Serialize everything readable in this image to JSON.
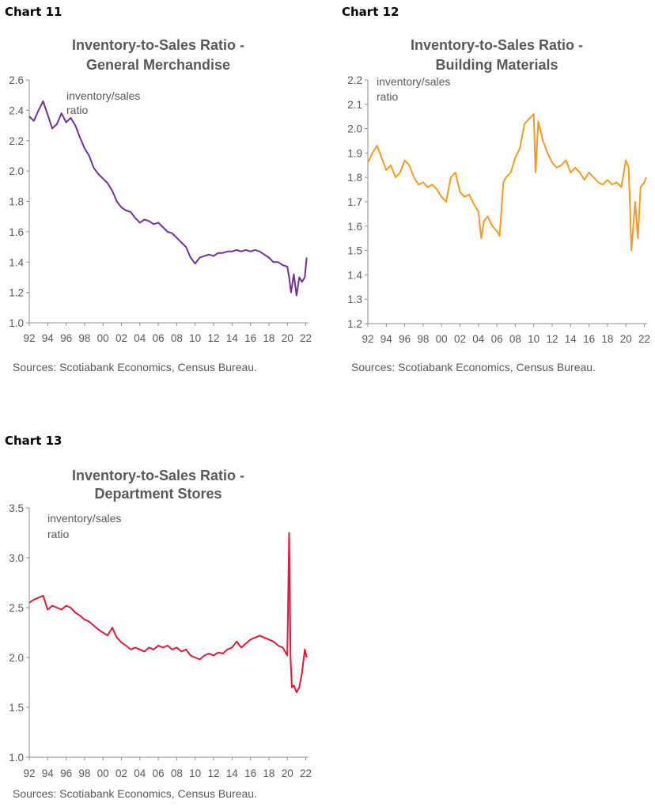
{
  "chart_data": [
    {
      "label": "Chart 11",
      "type": "line",
      "title": [
        "Inventory-to-Sales Ratio -",
        "General Merchandise"
      ],
      "annotation": [
        "inventory/sales",
        "ratio"
      ],
      "source": "Sources: Scotiabank Economics, Census Bureau.",
      "color": "#7030A0",
      "ylim": [
        1.0,
        2.6
      ],
      "yticks": [
        "2.6",
        "2.4",
        "2.2",
        "2.0",
        "1.8",
        "1.6",
        "1.4",
        "1.2",
        "1.0"
      ],
      "xticks": [
        "92",
        "94",
        "96",
        "98",
        "00",
        "02",
        "04",
        "06",
        "08",
        "10",
        "12",
        "14",
        "16",
        "18",
        "20",
        "22"
      ],
      "x": [
        1992.0,
        1992.5,
        1993.0,
        1993.5,
        1994.0,
        1994.5,
        1995.0,
        1995.5,
        1996.0,
        1996.5,
        1997.0,
        1997.5,
        1998.0,
        1998.5,
        1999.0,
        1999.5,
        2000.0,
        2000.5,
        2001.0,
        2001.5,
        2002.0,
        2002.5,
        2003.0,
        2003.5,
        2004.0,
        2004.5,
        2005.0,
        2005.5,
        2006.0,
        2006.5,
        2007.0,
        2007.5,
        2008.0,
        2008.5,
        2009.0,
        2009.5,
        2010.0,
        2010.5,
        2011.0,
        2011.5,
        2012.0,
        2012.5,
        2013.0,
        2013.5,
        2014.0,
        2014.5,
        2015.0,
        2015.5,
        2016.0,
        2016.5,
        2017.0,
        2017.5,
        2018.0,
        2018.5,
        2019.0,
        2019.5,
        2020.0,
        2020.2,
        2020.4,
        2020.7,
        2021.0,
        2021.3,
        2021.6,
        2021.9,
        2022.1
      ],
      "series": [
        {
          "values": [
            2.36,
            2.33,
            2.4,
            2.46,
            2.37,
            2.28,
            2.31,
            2.38,
            2.32,
            2.35,
            2.3,
            2.22,
            2.15,
            2.1,
            2.02,
            1.98,
            1.95,
            1.92,
            1.87,
            1.8,
            1.76,
            1.74,
            1.73,
            1.69,
            1.66,
            1.68,
            1.67,
            1.65,
            1.66,
            1.63,
            1.6,
            1.59,
            1.56,
            1.53,
            1.5,
            1.43,
            1.39,
            1.43,
            1.44,
            1.45,
            1.44,
            1.46,
            1.46,
            1.47,
            1.47,
            1.48,
            1.47,
            1.48,
            1.47,
            1.48,
            1.47,
            1.45,
            1.43,
            1.4,
            1.4,
            1.38,
            1.37,
            1.3,
            1.2,
            1.32,
            1.18,
            1.3,
            1.27,
            1.3,
            1.43
          ]
        }
      ]
    },
    {
      "label": "Chart 12",
      "type": "line",
      "title": [
        "Inventory-to-Sales Ratio -",
        "Building Materials"
      ],
      "annotation": [
        "inventory/sales",
        "ratio"
      ],
      "source": "Sources: Scotiabank Economics, Census Bureau.",
      "color": "#F79A1E",
      "ylim": [
        1.2,
        2.2
      ],
      "yticks": [
        "2.2",
        "2.1",
        "2.0",
        "1.9",
        "1.8",
        "1.7",
        "1.6",
        "1.5",
        "1.4",
        "1.3",
        "1.2"
      ],
      "xticks": [
        "92",
        "94",
        "96",
        "98",
        "00",
        "02",
        "04",
        "06",
        "08",
        "10",
        "12",
        "14",
        "16",
        "18",
        "20",
        "22"
      ],
      "x": [
        1992.0,
        1992.5,
        1993.0,
        1993.5,
        1994.0,
        1994.5,
        1995.0,
        1995.5,
        1996.0,
        1996.5,
        1997.0,
        1997.5,
        1998.0,
        1998.5,
        1999.0,
        1999.5,
        2000.0,
        2000.5,
        2001.0,
        2001.5,
        2002.0,
        2002.5,
        2003.0,
        2003.5,
        2004.0,
        2004.3,
        2004.6,
        2005.0,
        2005.5,
        2006.0,
        2006.3,
        2006.7,
        2007.0,
        2007.5,
        2008.0,
        2008.5,
        2009.0,
        2009.5,
        2010.0,
        2010.2,
        2010.5,
        2011.0,
        2011.5,
        2012.0,
        2012.5,
        2013.0,
        2013.5,
        2014.0,
        2014.5,
        2015.0,
        2015.5,
        2016.0,
        2016.5,
        2017.0,
        2017.5,
        2018.0,
        2018.5,
        2019.0,
        2019.5,
        2020.0,
        2020.3,
        2020.6,
        2021.0,
        2021.3,
        2021.6,
        2022.0,
        2022.2
      ],
      "series": [
        {
          "values": [
            1.86,
            1.9,
            1.93,
            1.88,
            1.83,
            1.85,
            1.8,
            1.82,
            1.87,
            1.85,
            1.8,
            1.77,
            1.78,
            1.76,
            1.77,
            1.75,
            1.72,
            1.7,
            1.8,
            1.82,
            1.74,
            1.72,
            1.73,
            1.69,
            1.66,
            1.55,
            1.62,
            1.64,
            1.6,
            1.58,
            1.56,
            1.78,
            1.8,
            1.82,
            1.88,
            1.92,
            2.02,
            2.04,
            2.06,
            1.82,
            2.03,
            1.95,
            1.9,
            1.86,
            1.84,
            1.85,
            1.87,
            1.82,
            1.84,
            1.82,
            1.79,
            1.82,
            1.8,
            1.78,
            1.77,
            1.79,
            1.77,
            1.78,
            1.76,
            1.87,
            1.84,
            1.5,
            1.7,
            1.55,
            1.76,
            1.78,
            1.8
          ]
        }
      ]
    },
    {
      "label": "Chart 13",
      "type": "line",
      "title": [
        "Inventory-to-Sales Ratio -",
        "Department Stores"
      ],
      "annotation": [
        "inventory/sales",
        "ratio"
      ],
      "source": "Sources: Scotiabank Economics, Census Bureau.",
      "color": "#E31837",
      "ylim": [
        1.0,
        3.5
      ],
      "yticks": [
        "3.5",
        "3.0",
        "2.5",
        "2.0",
        "1.5",
        "1.0"
      ],
      "xticks": [
        "92",
        "94",
        "96",
        "98",
        "00",
        "02",
        "04",
        "06",
        "08",
        "10",
        "12",
        "14",
        "16",
        "18",
        "20",
        "22"
      ],
      "x": [
        1992.0,
        1992.5,
        1993.0,
        1993.5,
        1994.0,
        1994.5,
        1995.0,
        1995.5,
        1996.0,
        1996.5,
        1997.0,
        1997.5,
        1998.0,
        1998.5,
        1999.0,
        1999.5,
        2000.0,
        2000.5,
        2001.0,
        2001.5,
        2002.0,
        2002.5,
        2003.0,
        2003.5,
        2004.0,
        2004.5,
        2005.0,
        2005.5,
        2006.0,
        2006.5,
        2007.0,
        2007.5,
        2008.0,
        2008.5,
        2009.0,
        2009.5,
        2010.0,
        2010.5,
        2011.0,
        2011.5,
        2012.0,
        2012.5,
        2013.0,
        2013.5,
        2014.0,
        2014.5,
        2015.0,
        2015.5,
        2016.0,
        2016.5,
        2017.0,
        2017.5,
        2018.0,
        2018.5,
        2019.0,
        2019.5,
        2020.0,
        2020.2,
        2020.35,
        2020.5,
        2020.7,
        2021.0,
        2021.3,
        2021.6,
        2021.9,
        2022.1
      ],
      "series": [
        {
          "values": [
            2.55,
            2.58,
            2.6,
            2.62,
            2.48,
            2.52,
            2.5,
            2.48,
            2.52,
            2.5,
            2.45,
            2.42,
            2.38,
            2.36,
            2.32,
            2.28,
            2.25,
            2.22,
            2.3,
            2.2,
            2.15,
            2.12,
            2.08,
            2.1,
            2.08,
            2.06,
            2.1,
            2.08,
            2.12,
            2.1,
            2.12,
            2.08,
            2.1,
            2.06,
            2.08,
            2.02,
            2.0,
            1.98,
            2.02,
            2.04,
            2.02,
            2.05,
            2.04,
            2.08,
            2.1,
            2.16,
            2.1,
            2.14,
            2.18,
            2.2,
            2.22,
            2.2,
            2.18,
            2.16,
            2.12,
            2.1,
            2.02,
            3.25,
            2.0,
            1.7,
            1.72,
            1.65,
            1.7,
            1.85,
            2.08,
            2.0
          ]
        }
      ]
    }
  ]
}
